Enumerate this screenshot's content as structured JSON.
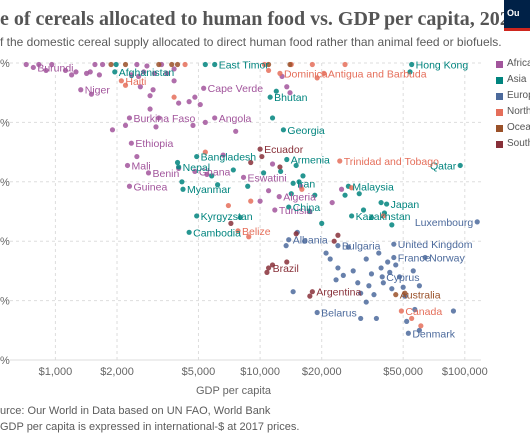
{
  "header": {
    "title": "e of cereals allocated to human food vs. GDP per capita, 2020",
    "subtitle": "f the domestic cereal supply allocated to direct human food rather than animal feed or biofuels.",
    "logo_text": "Ou"
  },
  "footer": {
    "source": "urce: Our World in Data based on UN FAO, World Bank",
    "note": "GDP per capita is expressed in international-$ at 2017 prices."
  },
  "colors": {
    "Africa": "#a2559c",
    "Asia": "#00847e",
    "Europe": "#4c6a9c",
    "North America": "#e56e5a",
    "Oceania": "#9a5129",
    "South America": "#883039"
  },
  "legend": [
    {
      "label": "Africa",
      "region": "Africa"
    },
    {
      "label": "Asia",
      "region": "Asia"
    },
    {
      "label": "Europ",
      "region": "Europe"
    },
    {
      "label": "North",
      "region": "North America"
    },
    {
      "label": "Ocean",
      "region": "Oceania"
    },
    {
      "label": "South",
      "region": "South America"
    }
  ],
  "chart_data": {
    "type": "scatter",
    "title": "e of cereals allocated to human food vs. GDP per capita, 2020",
    "xlabel": "GDP per capita",
    "ylabel": "",
    "xscale": "log",
    "xlim": [
      600,
      120000
    ],
    "ylim": [
      0,
      100
    ],
    "x_ticks": [
      1000,
      2000,
      5000,
      10000,
      20000,
      50000,
      100000
    ],
    "x_tick_labels": [
      "$1,000",
      "$2,000",
      "$5,000",
      "$10,000",
      "$20,000",
      "$50,000",
      "$100,000"
    ],
    "y_ticks": [
      0,
      20,
      40,
      60,
      80,
      100
    ],
    "y_tick_labels": [
      "%",
      "%",
      "%",
      "%",
      "%",
      "%"
    ],
    "grid": true,
    "legend_position": "right",
    "series": [
      {
        "name": "Africa",
        "points": [
          {
            "x": 780,
            "y": 98.5,
            "label": "Burundi"
          },
          {
            "x": 1330,
            "y": 91,
            "label": "Niger"
          },
          {
            "x": 2300,
            "y": 81.5,
            "label": "Burkina Faso"
          },
          {
            "x": 2350,
            "y": 73,
            "label": "Ethiopia"
          },
          {
            "x": 2250,
            "y": 65.5,
            "label": "Mali"
          },
          {
            "x": 2850,
            "y": 63,
            "label": "Benin"
          },
          {
            "x": 2300,
            "y": 58.5,
            "label": "Guinea"
          },
          {
            "x": 5300,
            "y": 91.5,
            "label": "Cape Verde"
          },
          {
            "x": 6000,
            "y": 81.5,
            "label": "Angola"
          },
          {
            "x": 4800,
            "y": 63.5,
            "label": "Ghana"
          },
          {
            "x": 8300,
            "y": 61.5,
            "label": "Eswatini"
          },
          {
            "x": 12400,
            "y": 55,
            "label": "Algeria"
          },
          {
            "x": 11800,
            "y": 50.5,
            "label": "Tunisia"
          },
          {
            "x": 720,
            "y": 99.5
          },
          {
            "x": 830,
            "y": 99.5
          },
          {
            "x": 900,
            "y": 97.5
          },
          {
            "x": 960,
            "y": 99.5
          },
          {
            "x": 1120,
            "y": 97.5
          },
          {
            "x": 1200,
            "y": 96
          },
          {
            "x": 1260,
            "y": 97
          },
          {
            "x": 1420,
            "y": 96.5
          },
          {
            "x": 1480,
            "y": 97
          },
          {
            "x": 1560,
            "y": 99.5
          },
          {
            "x": 1640,
            "y": 96
          },
          {
            "x": 1500,
            "y": 89.5
          },
          {
            "x": 1700,
            "y": 99.5
          },
          {
            "x": 2350,
            "y": 96
          },
          {
            "x": 2550,
            "y": 95.5
          },
          {
            "x": 2700,
            "y": 97
          },
          {
            "x": 2500,
            "y": 99.5
          },
          {
            "x": 2800,
            "y": 99
          },
          {
            "x": 3050,
            "y": 96.5
          },
          {
            "x": 3300,
            "y": 99.5
          },
          {
            "x": 2600,
            "y": 92
          },
          {
            "x": 2900,
            "y": 89
          },
          {
            "x": 3000,
            "y": 91
          },
          {
            "x": 3500,
            "y": 96.5
          },
          {
            "x": 3800,
            "y": 98
          },
          {
            "x": 2900,
            "y": 84.5
          },
          {
            "x": 3200,
            "y": 81.5
          },
          {
            "x": 2200,
            "y": 79
          },
          {
            "x": 3100,
            "y": 78.5
          },
          {
            "x": 1900,
            "y": 77.5
          },
          {
            "x": 2500,
            "y": 68.5
          },
          {
            "x": 3800,
            "y": 94
          },
          {
            "x": 4000,
            "y": 86.5
          },
          {
            "x": 4500,
            "y": 87
          },
          {
            "x": 4800,
            "y": 88.5
          },
          {
            "x": 5100,
            "y": 86
          },
          {
            "x": 4700,
            "y": 79
          },
          {
            "x": 5400,
            "y": 80
          },
          {
            "x": 4000,
            "y": 64.5
          },
          {
            "x": 5500,
            "y": 62.5
          },
          {
            "x": 7600,
            "y": 77
          },
          {
            "x": 6600,
            "y": 69
          },
          {
            "x": 12800,
            "y": 95.5
          },
          {
            "x": 13500,
            "y": 92
          },
          {
            "x": 14000,
            "y": 90
          },
          {
            "x": 11000,
            "y": 57
          },
          {
            "x": 10000,
            "y": 53.5
          },
          {
            "x": 11500,
            "y": 66
          },
          {
            "x": 15800,
            "y": 58.5
          },
          {
            "x": 22500,
            "y": 53
          },
          {
            "x": 25000,
            "y": 57.5
          }
        ]
      },
      {
        "name": "Asia",
        "points": [
          {
            "x": 1950,
            "y": 97,
            "label": "Afghanistan"
          },
          {
            "x": 4000,
            "y": 65,
            "label": "Nepal"
          },
          {
            "x": 4200,
            "y": 57.5,
            "label": "Myanmar"
          },
          {
            "x": 4900,
            "y": 68.5,
            "label": "Bangladesh"
          },
          {
            "x": 4900,
            "y": 48.5,
            "label": "Kyrgyzstan"
          },
          {
            "x": 4500,
            "y": 43,
            "label": "Cambodia"
          },
          {
            "x": 11200,
            "y": 88.5,
            "label": "Bhutan"
          },
          {
            "x": 13000,
            "y": 77.5,
            "label": "Georgia"
          },
          {
            "x": 13500,
            "y": 67.5,
            "label": "Armenia"
          },
          {
            "x": 14500,
            "y": 59.5,
            "label": "Iran"
          },
          {
            "x": 13800,
            "y": 51.5,
            "label": "China"
          },
          {
            "x": 27000,
            "y": 58.5,
            "label": "Malaysia"
          },
          {
            "x": 28000,
            "y": 48.5,
            "label": "Kazakhstan"
          },
          {
            "x": 41500,
            "y": 52.5,
            "label": "Japan"
          },
          {
            "x": 55000,
            "y": 99.5,
            "label": "Hong Kong"
          },
          {
            "x": 95000,
            "y": 65.5,
            "label": "Qatar"
          },
          {
            "x": 6000,
            "y": 99.5,
            "label": "East Timor"
          },
          {
            "x": 1980,
            "y": 99.5
          },
          {
            "x": 3950,
            "y": 66.5
          },
          {
            "x": 4150,
            "y": 60
          },
          {
            "x": 5400,
            "y": 99.5
          },
          {
            "x": 5800,
            "y": 62
          },
          {
            "x": 6200,
            "y": 59
          },
          {
            "x": 7400,
            "y": 64
          },
          {
            "x": 8000,
            "y": 48
          },
          {
            "x": 8700,
            "y": 58.5
          },
          {
            "x": 10400,
            "y": 63
          },
          {
            "x": 11500,
            "y": 81.5
          },
          {
            "x": 12000,
            "y": 90.5
          },
          {
            "x": 12600,
            "y": 63.5
          },
          {
            "x": 14200,
            "y": 56
          },
          {
            "x": 15500,
            "y": 60
          },
          {
            "x": 15000,
            "y": 65.5
          },
          {
            "x": 16200,
            "y": 62
          },
          {
            "x": 17500,
            "y": 50
          },
          {
            "x": 18500,
            "y": 55.5
          },
          {
            "x": 20000,
            "y": 46
          },
          {
            "x": 26000,
            "y": 55.5
          },
          {
            "x": 30500,
            "y": 56
          },
          {
            "x": 32000,
            "y": 50.5
          },
          {
            "x": 35000,
            "y": 48
          },
          {
            "x": 39000,
            "y": 53
          },
          {
            "x": 40500,
            "y": 49.5
          },
          {
            "x": 44000,
            "y": 45.5
          },
          {
            "x": 54000,
            "y": 97
          }
        ]
      },
      {
        "name": "Europe",
        "points": [
          {
            "x": 24000,
            "y": 38.5,
            "label": "Bulgaria"
          },
          {
            "x": 19000,
            "y": 16,
            "label": "Belarus"
          },
          {
            "x": 45000,
            "y": 39,
            "label": "United Kingdom"
          },
          {
            "x": 45000,
            "y": 34.5,
            "label": "France"
          },
          {
            "x": 64000,
            "y": 34.5,
            "label": "Norway"
          },
          {
            "x": 39500,
            "y": 28,
            "label": "Cyprus"
          },
          {
            "x": 53000,
            "y": 9,
            "label": "Denmark"
          },
          {
            "x": 115000,
            "y": 46.5,
            "label": "Luxembourg"
          },
          {
            "x": 13800,
            "y": 40.5,
            "label": "Albania"
          },
          {
            "x": 13400,
            "y": 38.5
          },
          {
            "x": 15200,
            "y": 43
          },
          {
            "x": 16500,
            "y": 40
          },
          {
            "x": 14500,
            "y": 23
          },
          {
            "x": 21000,
            "y": 36
          },
          {
            "x": 22000,
            "y": 34
          },
          {
            "x": 24000,
            "y": 31
          },
          {
            "x": 23500,
            "y": 27
          },
          {
            "x": 25500,
            "y": 28.5
          },
          {
            "x": 27000,
            "y": 38
          },
          {
            "x": 28500,
            "y": 30
          },
          {
            "x": 30000,
            "y": 26
          },
          {
            "x": 31000,
            "y": 22.5
          },
          {
            "x": 33000,
            "y": 34
          },
          {
            "x": 33000,
            "y": 19.5
          },
          {
            "x": 34000,
            "y": 25
          },
          {
            "x": 35000,
            "y": 29
          },
          {
            "x": 36000,
            "y": 22
          },
          {
            "x": 38000,
            "y": 36
          },
          {
            "x": 39000,
            "y": 31
          },
          {
            "x": 40000,
            "y": 26
          },
          {
            "x": 42000,
            "y": 33
          },
          {
            "x": 43000,
            "y": 29.5
          },
          {
            "x": 44000,
            "y": 24
          },
          {
            "x": 46000,
            "y": 32
          },
          {
            "x": 48000,
            "y": 28
          },
          {
            "x": 50000,
            "y": 24.5
          },
          {
            "x": 51000,
            "y": 21.5
          },
          {
            "x": 52000,
            "y": 13
          },
          {
            "x": 56000,
            "y": 30
          },
          {
            "x": 57000,
            "y": 17
          },
          {
            "x": 60000,
            "y": 25
          },
          {
            "x": 88000,
            "y": 16.5
          },
          {
            "x": 60000,
            "y": 10
          },
          {
            "x": 31000,
            "y": 14
          },
          {
            "x": 37000,
            "y": 14
          }
        ]
      },
      {
        "name": "North America",
        "points": [
          {
            "x": 2100,
            "y": 94,
            "label": "Haiti"
          },
          {
            "x": 7800,
            "y": 43.5,
            "label": "Belize"
          },
          {
            "x": 24500,
            "y": 67,
            "label": "Trinidad and Tobago"
          },
          {
            "x": 49000,
            "y": 16.5,
            "label": "Canada"
          },
          {
            "x": 12500,
            "y": 96.5,
            "label": "Dominica"
          },
          {
            "x": 20500,
            "y": 96.5,
            "label": "Antigua and Barbuda"
          },
          {
            "x": 2200,
            "y": 92.5
          },
          {
            "x": 3800,
            "y": 88.5
          },
          {
            "x": 4300,
            "y": 99.5
          },
          {
            "x": 5400,
            "y": 70
          },
          {
            "x": 7000,
            "y": 52
          },
          {
            "x": 8800,
            "y": 41.5
          },
          {
            "x": 9000,
            "y": 53.5
          },
          {
            "x": 10500,
            "y": 99.5
          },
          {
            "x": 11000,
            "y": 97.5
          },
          {
            "x": 14200,
            "y": 99.5
          },
          {
            "x": 16000,
            "y": 57.5
          },
          {
            "x": 18000,
            "y": 99.5
          },
          {
            "x": 19000,
            "y": 95
          },
          {
            "x": 26000,
            "y": 99.5
          },
          {
            "x": 28000,
            "y": 58
          },
          {
            "x": 40000,
            "y": 48.5
          },
          {
            "x": 55000,
            "y": 14
          },
          {
            "x": 61000,
            "y": 11.5
          }
        ]
      },
      {
        "name": "Oceania",
        "points": [
          {
            "x": 1870,
            "y": 99.5
          },
          {
            "x": 2200,
            "y": 99.5
          },
          {
            "x": 3200,
            "y": 99.5
          },
          {
            "x": 3700,
            "y": 99.5
          },
          {
            "x": 3950,
            "y": 99.5
          },
          {
            "x": 11000,
            "y": 99.5
          },
          {
            "x": 14000,
            "y": 99.5
          },
          {
            "x": 51000,
            "y": 22.5
          },
          {
            "x": 46000,
            "y": 22,
            "label": "Australia"
          }
        ]
      },
      {
        "name": "South America",
        "points": [
          {
            "x": 10000,
            "y": 71,
            "label": "Ecuador"
          },
          {
            "x": 11000,
            "y": 31,
            "label": "Brazil"
          },
          {
            "x": 18000,
            "y": 23,
            "label": "Argentina"
          },
          {
            "x": 7200,
            "y": 46
          },
          {
            "x": 9000,
            "y": 66.5
          },
          {
            "x": 10200,
            "y": 68.5
          },
          {
            "x": 12500,
            "y": 65
          },
          {
            "x": 10800,
            "y": 29.5
          },
          {
            "x": 11500,
            "y": 32
          },
          {
            "x": 13500,
            "y": 33
          },
          {
            "x": 15000,
            "y": 42.5
          },
          {
            "x": 17500,
            "y": 21.5
          },
          {
            "x": 23000,
            "y": 40
          },
          {
            "x": 24000,
            "y": 42
          }
        ]
      }
    ]
  }
}
